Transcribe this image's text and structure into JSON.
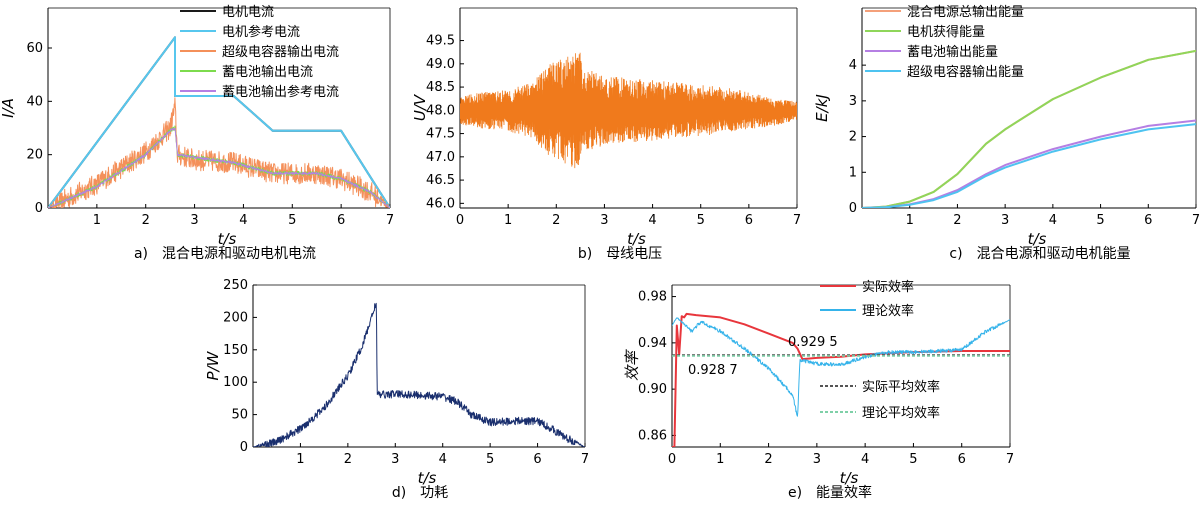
{
  "chart_data": [
    {
      "id": "a",
      "type": "line",
      "caption": "a)　混合电源和驱动电机电流",
      "xlabel": "t/s",
      "ylabel": "I/A",
      "xlim": [
        0,
        7
      ],
      "ylim": [
        0,
        75
      ],
      "xticks": [
        1,
        2,
        3,
        4,
        5,
        6,
        7
      ],
      "yticks": [
        0,
        20,
        40,
        60
      ],
      "legend_position": "top-center",
      "series": [
        {
          "name": "电机电流",
          "color": "#1a1a1a",
          "noise": 0,
          "x": [
            0,
            2.6,
            2.6,
            3.8,
            4.6,
            6.0,
            7.0
          ],
          "y": [
            0,
            64,
            42,
            42,
            29,
            29,
            0
          ]
        },
        {
          "name": "电机参考电流",
          "color": "#57c7ee",
          "noise": 0,
          "x": [
            0,
            2.6,
            2.6,
            3.8,
            4.6,
            6.0,
            7.0
          ],
          "y": [
            0,
            64,
            42,
            42,
            29,
            29,
            0
          ]
        },
        {
          "name": "超级电容器输出电流",
          "color": "#f4905a",
          "noise": 4,
          "x": [
            0,
            1,
            2,
            2.5,
            2.6,
            2.65,
            3.0,
            3.8,
            4.6,
            5.5,
            6.0,
            6.6,
            7.0
          ],
          "y": [
            0,
            9,
            21,
            30,
            38,
            20,
            18,
            17,
            13,
            13,
            11,
            6,
            0
          ]
        },
        {
          "name": "蓄电池输出电流",
          "color": "#7ddb4e",
          "noise": 0.8,
          "x": [
            0,
            1,
            2,
            2.5,
            2.6,
            2.65,
            3.0,
            3.8,
            4.6,
            5.5,
            6.0,
            6.6,
            7.0
          ],
          "y": [
            0,
            8,
            20,
            29,
            30,
            20,
            19,
            17,
            13,
            13,
            11,
            6,
            0
          ]
        },
        {
          "name": "蓄电池输出参考电流",
          "color": "#b57fe3",
          "noise": 0.4,
          "x": [
            0,
            1,
            2,
            2.5,
            2.6,
            2.65,
            3.0,
            3.8,
            4.6,
            5.5,
            6.0,
            6.6,
            7.0
          ],
          "y": [
            0,
            8,
            20,
            29,
            30,
            20,
            19,
            17,
            13,
            13,
            11,
            6,
            0
          ]
        }
      ]
    },
    {
      "id": "b",
      "type": "line",
      "caption": "b)　母线电压",
      "xlabel": "t/s",
      "ylabel": "U/V",
      "xlim": [
        0,
        7
      ],
      "ylim": [
        45.9,
        50.2
      ],
      "xticks": [
        0,
        1,
        2,
        3,
        4,
        5,
        6,
        7
      ],
      "yticks": [
        46.0,
        46.5,
        47.0,
        47.5,
        48.0,
        48.5,
        49.0,
        49.5
      ],
      "series": [
        {
          "name": "",
          "color": "#f07a1c",
          "kind": "band",
          "x": [
            0,
            0.5,
            1.0,
            1.5,
            1.8,
            2.0,
            2.3,
            2.5,
            2.6,
            3.0,
            3.5,
            4.0,
            4.5,
            5.0,
            5.5,
            6.0,
            6.5,
            7.0
          ],
          "center": [
            48.0,
            48.0,
            48.0,
            48.0,
            48.0,
            48.0,
            48.0,
            48.0,
            48.0,
            48.0,
            48.0,
            48.0,
            48.0,
            48.0,
            48.0,
            48.0,
            47.95,
            48.0
          ],
          "amplitude": [
            0.3,
            0.4,
            0.45,
            0.6,
            0.95,
            1.1,
            1.2,
            1.3,
            0.9,
            0.75,
            0.7,
            0.65,
            0.6,
            0.55,
            0.5,
            0.4,
            0.3,
            0.2
          ]
        }
      ]
    },
    {
      "id": "c",
      "type": "line",
      "caption": "c)　混合电源和驱动电机能量",
      "xlabel": "t/s",
      "ylabel": "E/kJ",
      "xlim": [
        0,
        7
      ],
      "ylim": [
        0,
        5.6
      ],
      "xticks": [
        1,
        2,
        3,
        4,
        5,
        6,
        7
      ],
      "yticks": [
        0,
        1,
        2,
        3,
        4
      ],
      "legend_position": "top-left",
      "series": [
        {
          "name": "混合电源总输出能量",
          "color": "#f4a07a",
          "x": [
            0,
            0.5,
            1,
            1.5,
            2,
            2.6,
            3,
            4,
            5,
            6,
            7
          ],
          "y": [
            0,
            0.04,
            0.18,
            0.45,
            0.95,
            1.8,
            2.2,
            3.05,
            3.65,
            4.15,
            4.4
          ]
        },
        {
          "name": "电机获得能量",
          "color": "#8fd65a",
          "x": [
            0,
            0.5,
            1,
            1.5,
            2,
            2.6,
            3,
            4,
            5,
            6,
            7
          ],
          "y": [
            0,
            0.04,
            0.18,
            0.45,
            0.95,
            1.8,
            2.2,
            3.05,
            3.65,
            4.15,
            4.4
          ]
        },
        {
          "name": "蓄电池输出能量",
          "color": "#b57fe3",
          "x": [
            0,
            0.5,
            1,
            1.5,
            2,
            2.6,
            3,
            4,
            5,
            6,
            7
          ],
          "y": [
            0,
            0.02,
            0.1,
            0.25,
            0.5,
            0.95,
            1.2,
            1.65,
            2.0,
            2.3,
            2.45
          ]
        },
        {
          "name": "超级电容器输出能量",
          "color": "#4ec3f0",
          "x": [
            0,
            0.5,
            1,
            1.5,
            2,
            2.6,
            3,
            4,
            5,
            6,
            7
          ],
          "y": [
            0,
            0.02,
            0.09,
            0.22,
            0.45,
            0.9,
            1.13,
            1.58,
            1.92,
            2.2,
            2.35
          ]
        }
      ]
    },
    {
      "id": "d",
      "type": "line",
      "caption": "d)　功耗",
      "xlabel": "t/s",
      "ylabel": "P/W",
      "xlim": [
        0,
        7
      ],
      "ylim": [
        0,
        250
      ],
      "xticks": [
        1,
        2,
        3,
        4,
        5,
        6,
        7
      ],
      "yticks": [
        0,
        50,
        100,
        150,
        200,
        250
      ],
      "series": [
        {
          "name": "",
          "color": "#1a2f6e",
          "noise": 6,
          "x": [
            0,
            0.5,
            1,
            1.5,
            2,
            2.3,
            2.5,
            2.6,
            2.62,
            3,
            3.5,
            4,
            4.3,
            4.6,
            5,
            5.5,
            6,
            6.3,
            6.6,
            7
          ],
          "y": [
            0,
            8,
            28,
            60,
            110,
            155,
            200,
            225,
            80,
            82,
            80,
            78,
            70,
            50,
            38,
            40,
            40,
            28,
            14,
            0
          ]
        }
      ]
    },
    {
      "id": "e",
      "type": "line",
      "caption": "e)　能量效率",
      "xlabel": "t/s",
      "ylabel": "效率",
      "xlim": [
        0,
        7
      ],
      "ylim": [
        0.85,
        0.99
      ],
      "xticks": [
        0,
        1,
        2,
        3,
        4,
        5,
        6,
        7
      ],
      "yticks": [
        0.86,
        0.9,
        0.94,
        0.98
      ],
      "legend_position": "top-center",
      "annotations": [
        "0.929 5",
        "0.928 7"
      ],
      "series": [
        {
          "name": "实际效率",
          "color": "#e8363c",
          "noise": 0,
          "x": [
            0,
            0.05,
            0.1,
            0.15,
            0.2,
            0.25,
            0.3,
            0.5,
            1.0,
            1.5,
            2.0,
            2.5,
            2.6,
            2.7,
            3.0,
            3.5,
            4.0,
            5.0,
            6.0,
            7.0
          ],
          "y": [
            0.85,
            0.85,
            0.955,
            0.93,
            0.963,
            0.962,
            0.965,
            0.964,
            0.962,
            0.956,
            0.948,
            0.94,
            0.935,
            0.926,
            0.927,
            0.928,
            0.93,
            0.932,
            0.933,
            0.933
          ]
        },
        {
          "name": "理论效率",
          "color": "#35b3ea",
          "noise": 0.0015,
          "x": [
            0,
            0.1,
            0.2,
            0.4,
            0.6,
            1.0,
            1.5,
            2.0,
            2.5,
            2.6,
            2.65,
            3.0,
            3.5,
            4.0,
            4.5,
            5.0,
            6.0,
            6.5,
            7.0
          ],
          "y": [
            0.955,
            0.962,
            0.958,
            0.95,
            0.958,
            0.95,
            0.935,
            0.918,
            0.895,
            0.875,
            0.925,
            0.922,
            0.921,
            0.928,
            0.932,
            0.932,
            0.934,
            0.95,
            0.96
          ]
        },
        {
          "name": "实际平均效率",
          "color": "#555555",
          "dashed": true,
          "x": [
            0,
            7
          ],
          "y": [
            0.9295,
            0.9295
          ]
        },
        {
          "name": "理论平均效率",
          "color": "#7fd0a8",
          "dashed": true,
          "x": [
            0,
            7
          ],
          "y": [
            0.9287,
            0.9287
          ]
        }
      ]
    }
  ]
}
